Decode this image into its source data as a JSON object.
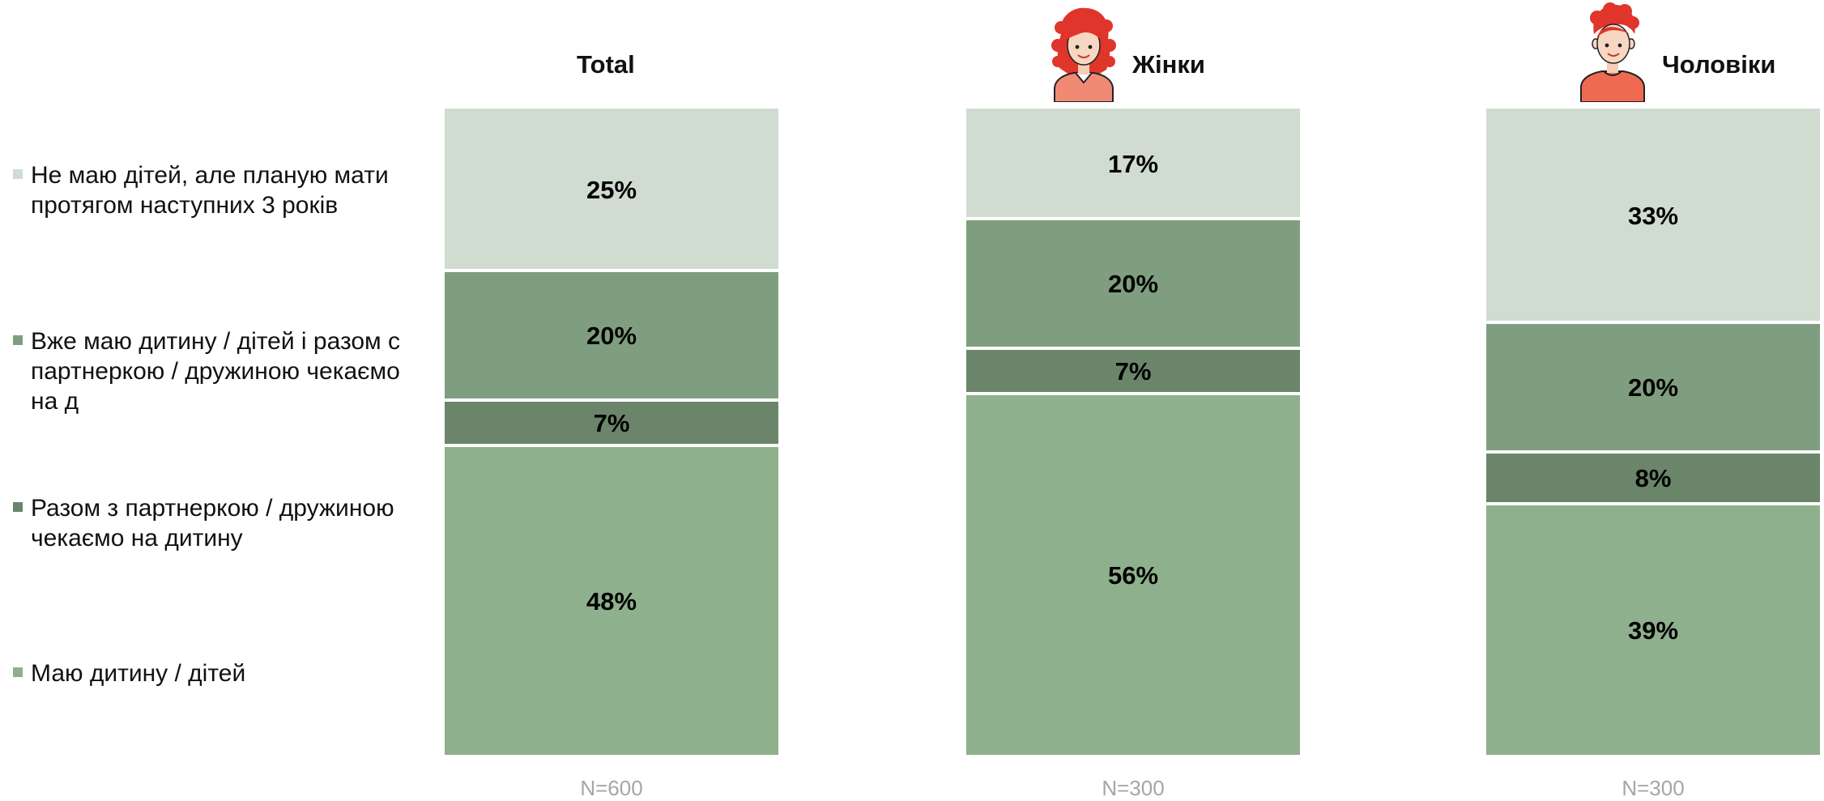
{
  "chart_data": {
    "type": "stacked-bar-100",
    "title": "",
    "legend": {
      "placement": "left",
      "items": [
        {
          "key": "planning",
          "label": "Не маю дітей, але планую мати протягом наступних 3 років",
          "color": "#d0dcd0"
        },
        {
          "key": "have_and_expecting",
          "label": "Вже маю дитину / дітей і разом с партнеркою / дружиною чекаємо на д",
          "color": "#7f9e7f"
        },
        {
          "key": "expecting",
          "label": "Разом з партнеркою / дружиною чекаємо на дитину",
          "color": "#6b856b"
        },
        {
          "key": "have_children",
          "label": "Маю дитину / дітей",
          "color": "#8fb08c"
        }
      ]
    },
    "columns": [
      {
        "name": "Total",
        "n_label": "N=600",
        "icon": "",
        "values": {
          "planning": 25,
          "have_and_expecting": 20,
          "expecting": 7,
          "have_children": 48
        }
      },
      {
        "name": "Жінки",
        "n_label": "N=300",
        "icon": "woman-avatar-icon",
        "values": {
          "planning": 17,
          "have_and_expecting": 20,
          "expecting": 7,
          "have_children": 56
        }
      },
      {
        "name": "Чоловіки",
        "n_label": "N=300",
        "icon": "man-avatar-icon",
        "values": {
          "planning": 33,
          "have_and_expecting": 20,
          "expecting": 8,
          "have_children": 39
        }
      }
    ],
    "value_suffix": "%",
    "stack_order_top_to_bottom": [
      "planning",
      "have_and_expecting",
      "expecting",
      "have_children"
    ]
  }
}
